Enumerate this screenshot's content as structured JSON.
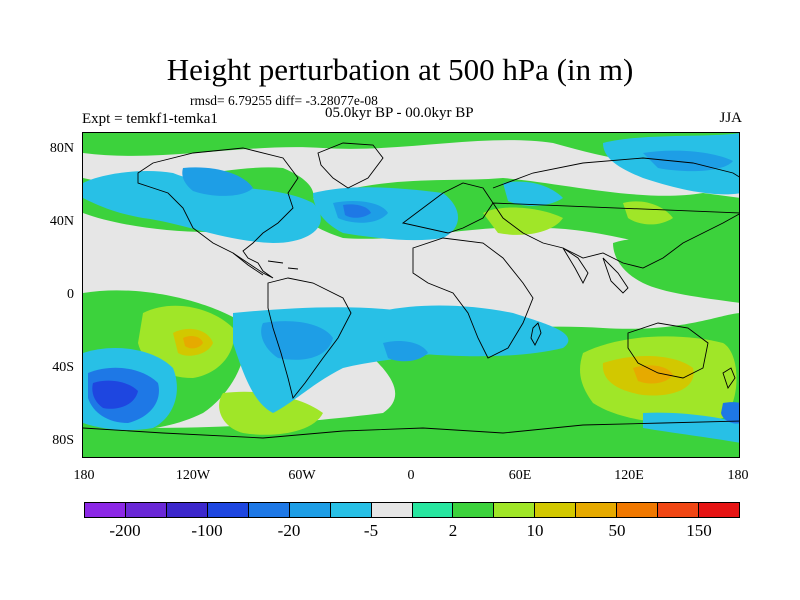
{
  "title": "Height perturbation at 500 hPa (in m)",
  "stats": "rmsd= 6.79255 diff= -3.28077e-08",
  "experiment": "Expt = temkf1-temka1",
  "period": "05.0kyr BP - 00.0kyr BP",
  "season": "JJA",
  "lat_labels": [
    "80N",
    "40N",
    "0",
    "40S",
    "80S"
  ],
  "lon_labels": [
    "180",
    "120W",
    "60W",
    "0",
    "60E",
    "120E",
    "180"
  ],
  "colorbar": {
    "colors": [
      "#8c28e6",
      "#6a28d6",
      "#3c28cc",
      "#1e46e0",
      "#1e78e6",
      "#1e9ee6",
      "#28c0e6",
      "#e6e6e6",
      "#28e6a0",
      "#3cd23c",
      "#a0e628",
      "#d2c800",
      "#e6aa00",
      "#f07800",
      "#f04614",
      "#e61414"
    ],
    "labels": [
      "-200",
      "-100",
      "-20",
      "-5",
      "2",
      "10",
      "50",
      "150"
    ]
  }
}
